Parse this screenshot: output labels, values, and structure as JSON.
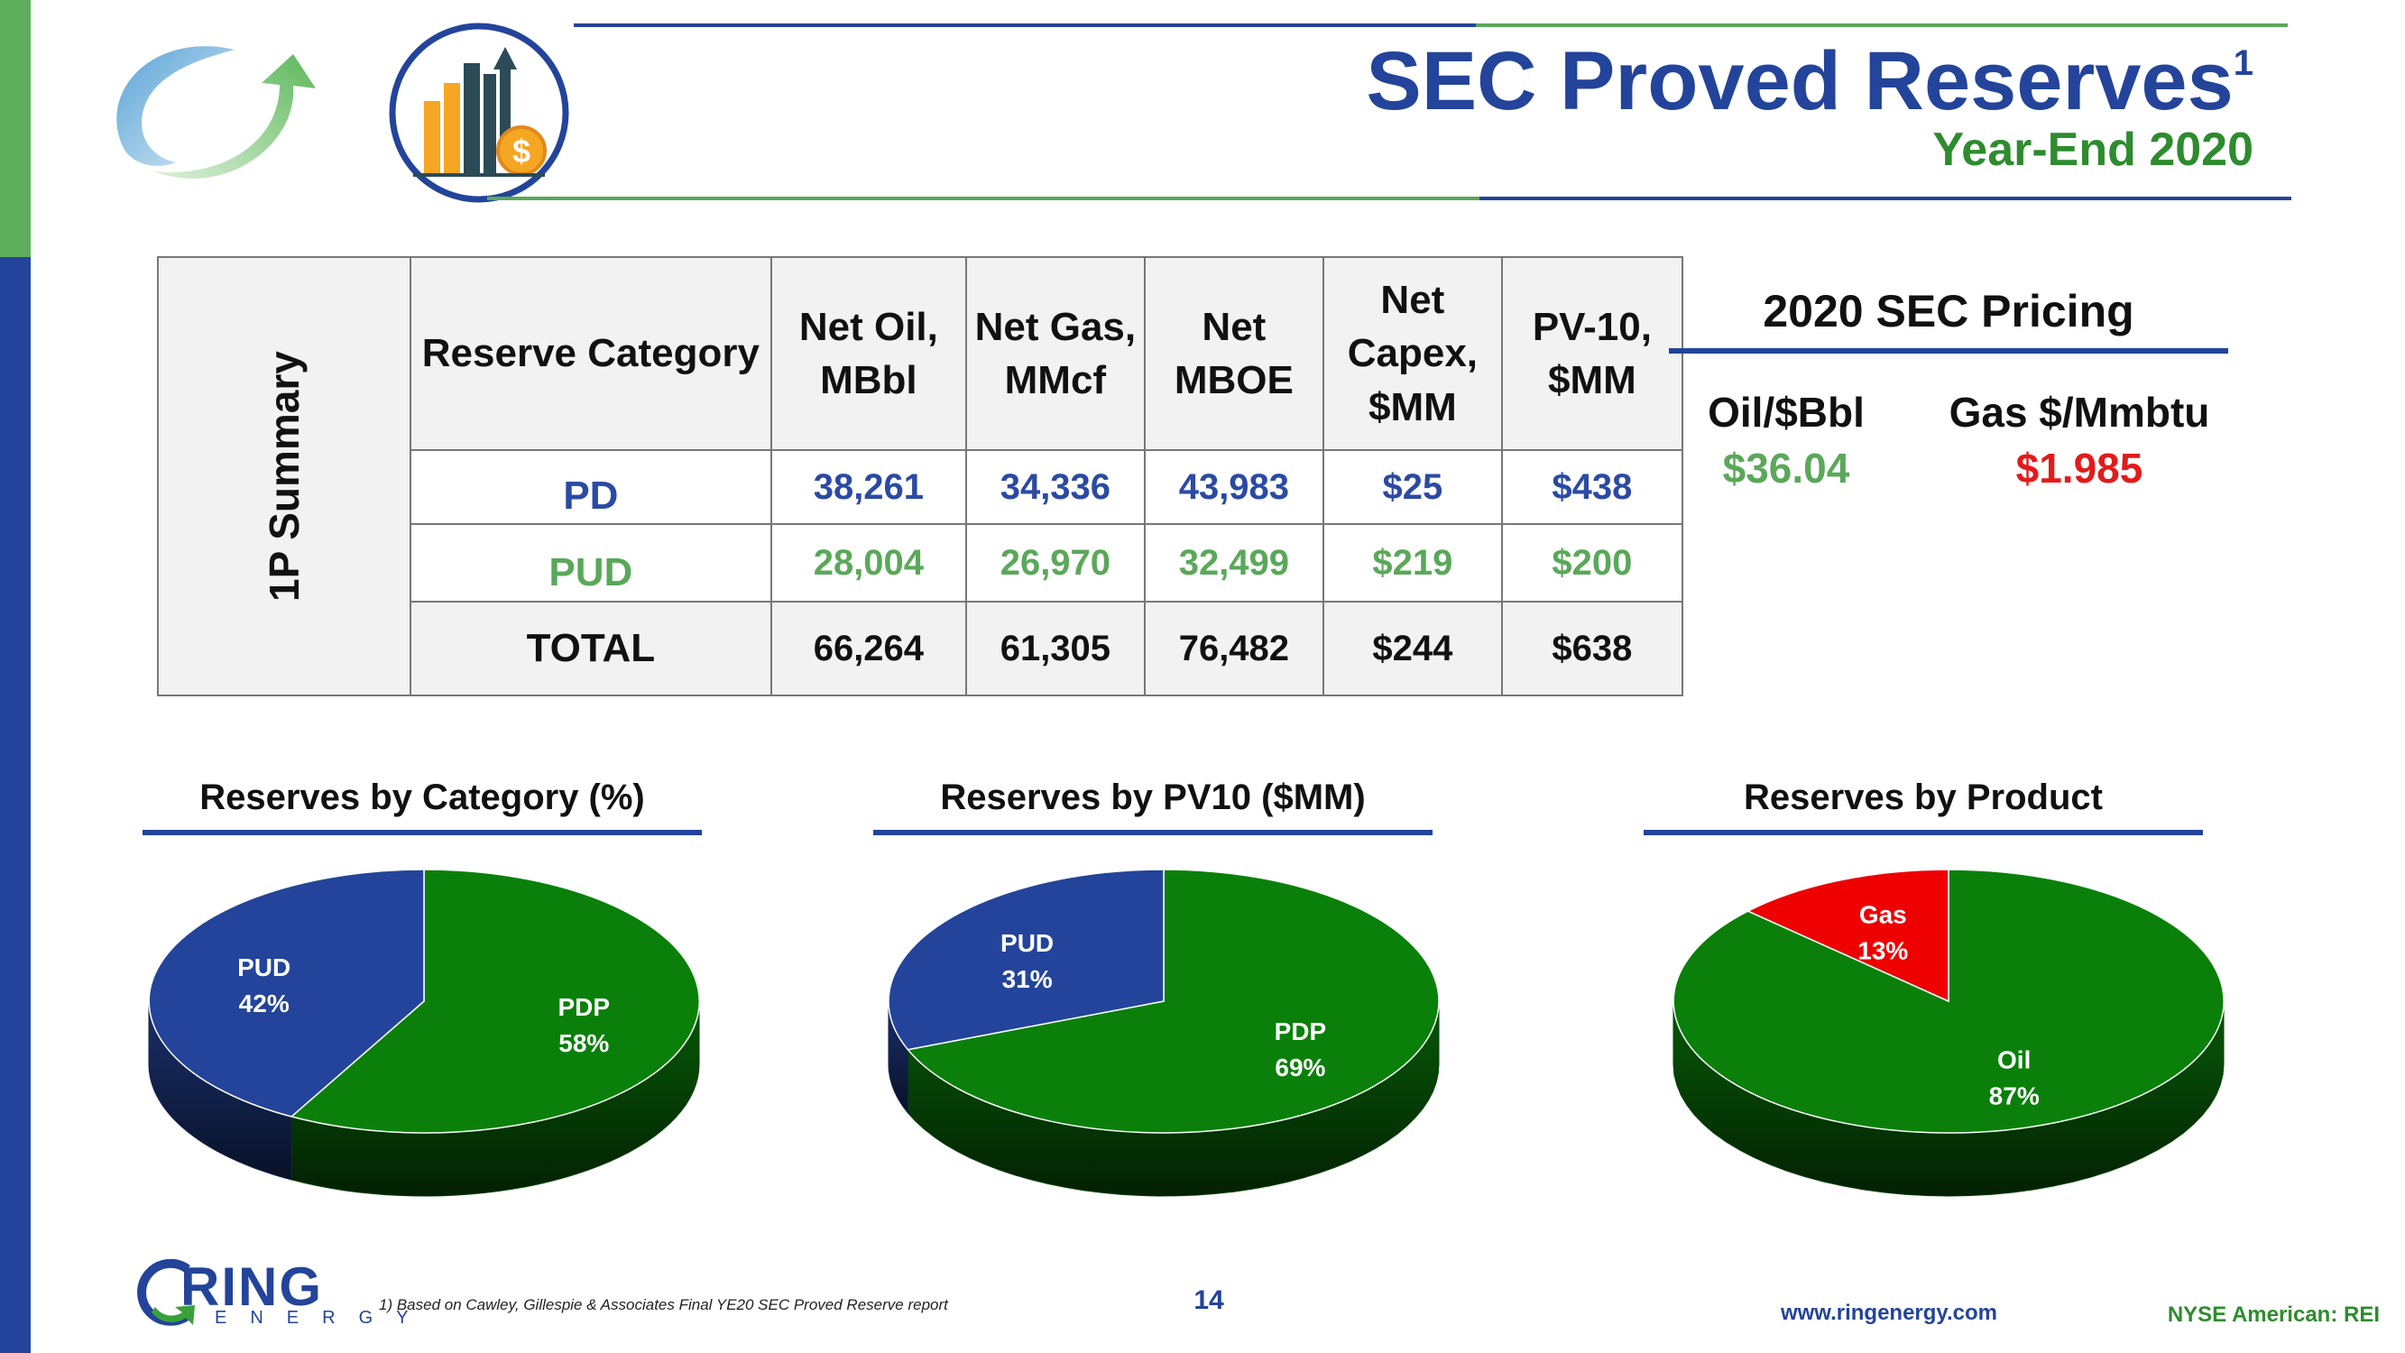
{
  "header": {
    "title": "SEC Proved Reserves",
    "title_sup": "1",
    "subtitle": "Year-End 2020"
  },
  "summary_table": {
    "side_label": "1P Summary",
    "columns": [
      "Reserve Category",
      "Net Oil, MBbl",
      "Net Gas, MMcf",
      "Net MBOE",
      "Net Capex, $MM",
      "PV-10, $MM"
    ],
    "rows": [
      {
        "label": "PD",
        "values": [
          "38,261",
          "34,336",
          "43,983",
          "$25",
          "$438"
        ],
        "color": "#2b4aa3"
      },
      {
        "label": "PUD",
        "values": [
          "28,004",
          "26,970",
          "32,499",
          "$219",
          "$200"
        ],
        "color": "#5aa85a"
      },
      {
        "label": "TOTAL",
        "values": [
          "66,264",
          "61,305",
          "76,482",
          "$244",
          "$638"
        ],
        "color": "#111111"
      }
    ]
  },
  "pricing": {
    "title": "2020 SEC Pricing",
    "oil_label": "Oil/$Bbl",
    "oil_value": "$36.04",
    "gas_label": "Gas $/Mmbtu",
    "gas_value": "$1.985",
    "oil_color": "#5aa85a",
    "gas_color": "#e31b1b"
  },
  "chart_data": [
    {
      "type": "pie",
      "title": "Reserves by Category (%)",
      "slices": [
        {
          "label": "PDP",
          "value": 58,
          "display": "58%",
          "color": "#0a800a"
        },
        {
          "label": "PUD",
          "value": 42,
          "display": "42%",
          "color": "#23449a"
        }
      ]
    },
    {
      "type": "pie",
      "title": "Reserves by PV10 ($MM)",
      "slices": [
        {
          "label": "PDP",
          "value": 69,
          "display": "69%",
          "color": "#0a800a"
        },
        {
          "label": "PUD",
          "value": 31,
          "display": "31%",
          "color": "#23449a"
        }
      ]
    },
    {
      "type": "pie",
      "title": "Reserves by Product",
      "slices": [
        {
          "label": "Oil",
          "value": 87,
          "display": "87%",
          "color": "#0a800a"
        },
        {
          "label": "Gas",
          "value": 13,
          "display": "13%",
          "color": "#ee0000"
        }
      ]
    }
  ],
  "footer": {
    "logo_ring": "RING",
    "logo_energy": "ENERGY",
    "footnote": "1)     Based on Cawley, Gillespie & Associates Final YE20 SEC Proved Reserve report",
    "page_number": "14",
    "website": "www.ringenergy.com",
    "exchange": "NYSE American: REI"
  },
  "colors": {
    "brand_blue": "#23449a",
    "brand_green": "#2e8b2e",
    "left_bar_green": "#5eae5e"
  },
  "icons": [
    "refresh-arrow-icon",
    "bar-chart-dollar-icon",
    "ring-logo-icon"
  ]
}
